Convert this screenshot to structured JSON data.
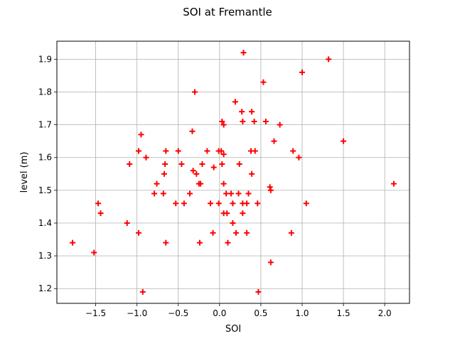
{
  "chart_data": {
    "type": "scatter",
    "title": "SOI at Fremantle",
    "xlabel": "SOI",
    "ylabel": "level (m)",
    "xlim": [
      -1.97,
      2.3
    ],
    "ylim": [
      1.155,
      1.955
    ],
    "grid": true,
    "marker": "+",
    "color": "#ff0000",
    "xticks": [
      -1.5,
      -1.0,
      -0.5,
      0.0,
      0.5,
      1.0,
      1.5,
      2.0
    ],
    "xtick_labels": [
      "−1.5",
      "−1.0",
      "−0.5",
      "0.0",
      "0.5",
      "1.0",
      "1.5",
      "2.0"
    ],
    "yticks": [
      1.2,
      1.3,
      1.4,
      1.5,
      1.6,
      1.7,
      1.8,
      1.9
    ],
    "ytick_labels": [
      "1.2",
      "1.3",
      "1.4",
      "1.5",
      "1.6",
      "1.7",
      "1.8",
      "1.9"
    ],
    "points": [
      [
        -1.78,
        1.34
      ],
      [
        -1.52,
        1.31
      ],
      [
        -1.47,
        1.46
      ],
      [
        -1.44,
        1.43
      ],
      [
        -1.12,
        1.4
      ],
      [
        -1.09,
        1.58
      ],
      [
        -0.98,
        1.62
      ],
      [
        -0.98,
        1.37
      ],
      [
        -0.95,
        1.67
      ],
      [
        -0.93,
        1.19
      ],
      [
        -0.89,
        1.6
      ],
      [
        -0.79,
        1.49
      ],
      [
        -0.76,
        1.52
      ],
      [
        -0.68,
        1.49
      ],
      [
        -0.67,
        1.55
      ],
      [
        -0.66,
        1.58
      ],
      [
        -0.65,
        1.62
      ],
      [
        -0.65,
        1.34
      ],
      [
        -0.53,
        1.46
      ],
      [
        -0.5,
        1.62
      ],
      [
        -0.46,
        1.58
      ],
      [
        -0.43,
        1.46
      ],
      [
        -0.36,
        1.49
      ],
      [
        -0.33,
        1.68
      ],
      [
        -0.32,
        1.56
      ],
      [
        -0.3,
        1.8
      ],
      [
        -0.28,
        1.55
      ],
      [
        -0.25,
        1.52
      ],
      [
        -0.24,
        1.34
      ],
      [
        -0.23,
        1.52
      ],
      [
        -0.21,
        1.58
      ],
      [
        -0.15,
        1.62
      ],
      [
        -0.11,
        1.46
      ],
      [
        -0.08,
        1.37
      ],
      [
        -0.07,
        1.57
      ],
      [
        -0.01,
        1.46
      ],
      [
        -0.01,
        1.62
      ],
      [
        0.02,
        1.62
      ],
      [
        0.03,
        1.58
      ],
      [
        0.03,
        1.71
      ],
      [
        0.05,
        1.7
      ],
      [
        0.05,
        1.61
      ],
      [
        0.05,
        1.52
      ],
      [
        0.05,
        1.43
      ],
      [
        0.08,
        1.49
      ],
      [
        0.09,
        1.43
      ],
      [
        0.1,
        1.34
      ],
      [
        0.14,
        1.49
      ],
      [
        0.16,
        1.46
      ],
      [
        0.16,
        1.4
      ],
      [
        0.19,
        1.77
      ],
      [
        0.2,
        1.37
      ],
      [
        0.23,
        1.49
      ],
      [
        0.24,
        1.58
      ],
      [
        0.27,
        1.74
      ],
      [
        0.28,
        1.71
      ],
      [
        0.28,
        1.46
      ],
      [
        0.28,
        1.43
      ],
      [
        0.29,
        1.92
      ],
      [
        0.33,
        1.46
      ],
      [
        0.33,
        1.37
      ],
      [
        0.35,
        1.49
      ],
      [
        0.38,
        1.62
      ],
      [
        0.39,
        1.74
      ],
      [
        0.39,
        1.55
      ],
      [
        0.42,
        1.71
      ],
      [
        0.43,
        1.62
      ],
      [
        0.46,
        1.46
      ],
      [
        0.47,
        1.19
      ],
      [
        0.53,
        1.83
      ],
      [
        0.56,
        1.71
      ],
      [
        0.61,
        1.51
      ],
      [
        0.62,
        1.5
      ],
      [
        0.62,
        1.28
      ],
      [
        0.66,
        1.65
      ],
      [
        0.73,
        1.7
      ],
      [
        0.87,
        1.37
      ],
      [
        0.89,
        1.62
      ],
      [
        0.96,
        1.6
      ],
      [
        1.0,
        1.86
      ],
      [
        1.05,
        1.46
      ],
      [
        1.32,
        1.9
      ],
      [
        1.5,
        1.65
      ],
      [
        2.11,
        1.52
      ]
    ]
  }
}
